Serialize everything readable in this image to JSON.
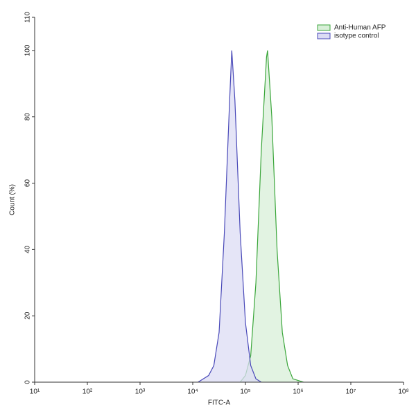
{
  "chart_data": {
    "type": "line",
    "xlabel": "FITC-A",
    "ylabel": "Count (%)",
    "xscale": "log",
    "xlim": [
      10,
      100000000
    ],
    "xticks": [
      {
        "value": 10,
        "label": "10¹"
      },
      {
        "value": 100,
        "label": "10²"
      },
      {
        "value": 1000,
        "label": "10³"
      },
      {
        "value": 10000,
        "label": "10⁴"
      },
      {
        "value": 100000,
        "label": "10⁵"
      },
      {
        "value": 1000000,
        "label": "10⁶"
      },
      {
        "value": 10000000,
        "label": "10⁷"
      },
      {
        "value": 100000000,
        "label": "10⁸"
      }
    ],
    "ylim": [
      0,
      110
    ],
    "yticks": [
      0,
      20,
      40,
      60,
      80,
      100,
      110
    ],
    "legend": "upper right",
    "series": [
      {
        "name": "Anti-Human AFP",
        "color": "#3aa63a",
        "fill": "#d8efd8",
        "x": [
          79400,
          100000,
          126000,
          158000,
          200000,
          251000,
          263000,
          316000,
          398000,
          501000,
          631000,
          794000,
          1000000,
          1260000
        ],
        "values": [
          0,
          2,
          8,
          30,
          70,
          98,
          100,
          80,
          40,
          15,
          5,
          1,
          0.5,
          0
        ]
      },
      {
        "name": "isotype control",
        "color": "#4848b8",
        "fill": "#dcdcf4",
        "x": [
          12600,
          20000,
          25100,
          31600,
          39800,
          50100,
          55000,
          63100,
          79400,
          100000,
          126000,
          158000,
          200000
        ],
        "values": [
          0,
          2,
          5,
          15,
          45,
          85,
          100,
          85,
          45,
          18,
          5,
          1,
          0
        ]
      }
    ]
  }
}
